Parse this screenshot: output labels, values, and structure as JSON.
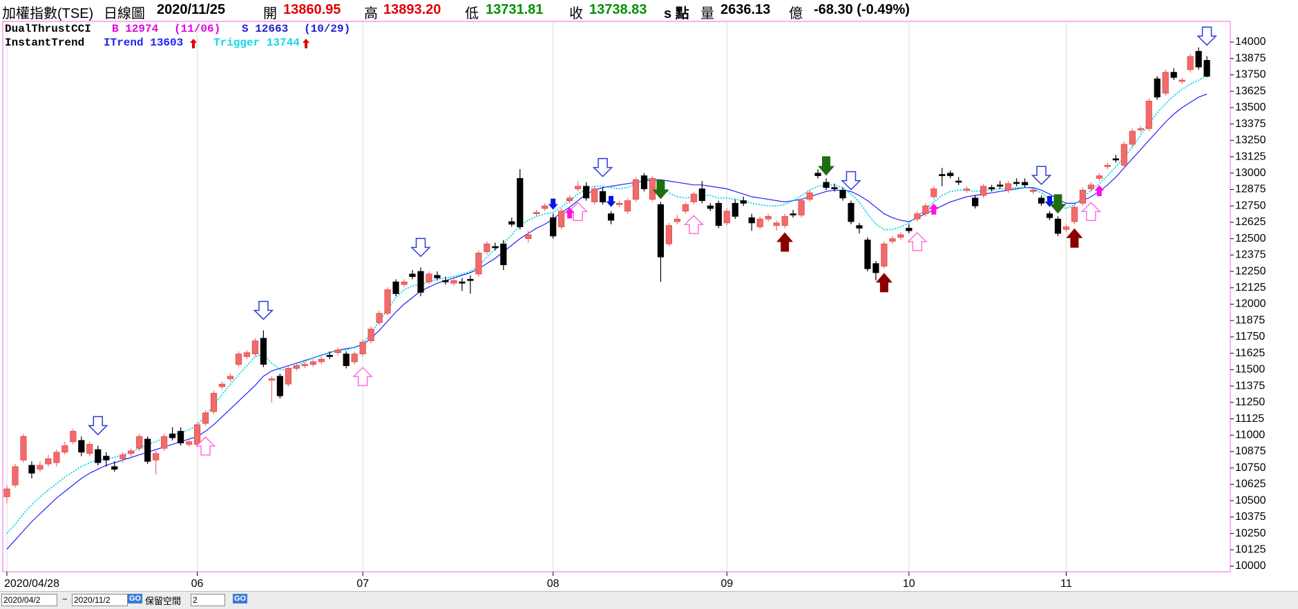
{
  "header": {
    "name": "加權指數(TSE)",
    "period": "日線圖",
    "date": "2020/11/25",
    "open_label": "開",
    "open": "13860.95",
    "high_label": "高",
    "high": "13893.20",
    "low_label": "低",
    "low": "13731.81",
    "close_label": "收",
    "close": "13738.83",
    "unit": "s 點",
    "volume_label": "量",
    "volume": "2636.13",
    "volume_unit": "億",
    "change": "-68.30 (-0.49%)"
  },
  "legend": {
    "dual_name": "DualThrustCCI",
    "buy": "B 12974",
    "buy_date": "(11/06)",
    "sell": "S 12663",
    "sell_date": "(10/29)",
    "trend_name": "InstantTrend"
  },
  "toolbar": {
    "start": "2020/04/2",
    "tilde": "~",
    "end": "2020/11/2",
    "go": "GO",
    "reserve_label": "保留空間",
    "reserve_value": "2",
    "go2": "GO"
  },
  "chart_data": {
    "type": "candlestick",
    "up_color": "#f26b6b",
    "down_color": "#000000",
    "frame_color": "#f060f0",
    "grid": true,
    "ylim": [
      10000,
      14000
    ],
    "yticks": [
      10000,
      10125,
      10250,
      10375,
      10500,
      10625,
      10750,
      10875,
      11000,
      11125,
      11250,
      11375,
      11500,
      11625,
      11750,
      11875,
      12000,
      12125,
      12250,
      12375,
      12500,
      12625,
      12750,
      12875,
      13000,
      13125,
      13250,
      13375,
      13500,
      13625,
      13750,
      13875,
      14000
    ],
    "categories": [
      "2020/04/28",
      null,
      null,
      null,
      null,
      null,
      null,
      null,
      null,
      null,
      null,
      null,
      null,
      null,
      null,
      null,
      null,
      null,
      null,
      null,
      null,
      null,
      null,
      "06",
      null,
      null,
      null,
      null,
      null,
      null,
      null,
      null,
      null,
      null,
      null,
      null,
      null,
      null,
      null,
      null,
      null,
      null,
      null,
      "07",
      null,
      null,
      null,
      null,
      null,
      null,
      null,
      null,
      null,
      null,
      null,
      null,
      null,
      null,
      null,
      null,
      null,
      null,
      null,
      null,
      null,
      null,
      "08",
      null,
      null,
      null,
      null,
      null,
      null,
      null,
      null,
      null,
      null,
      null,
      null,
      null,
      null,
      null,
      null,
      null,
      null,
      null,
      null,
      "09",
      null,
      null,
      null,
      null,
      null,
      null,
      null,
      null,
      null,
      null,
      null,
      null,
      null,
      null,
      null,
      null,
      null,
      null,
      null,
      null,
      null,
      "10",
      null,
      null,
      null,
      null,
      null,
      null,
      null,
      null,
      null,
      null,
      null,
      null,
      null,
      null,
      null,
      null,
      null,
      null,
      "11",
      null,
      null,
      null,
      null,
      null,
      null,
      null,
      null,
      null,
      null,
      null,
      null,
      null,
      null,
      null,
      null,
      null
    ],
    "ohlc": [
      [
        10530,
        10620,
        10480,
        10590
      ],
      [
        10620,
        10780,
        10600,
        10760
      ],
      [
        10810,
        11010,
        10790,
        10990
      ],
      [
        10770,
        10800,
        10670,
        10710
      ],
      [
        10740,
        10800,
        10720,
        10770
      ],
      [
        10780,
        10850,
        10760,
        10820
      ],
      [
        10790,
        10890,
        10760,
        10870
      ],
      [
        10870,
        10950,
        10850,
        10920
      ],
      [
        10950,
        11050,
        10930,
        11030
      ],
      [
        10960,
        10990,
        10840,
        10870
      ],
      [
        10860,
        10950,
        10840,
        10930
      ],
      [
        10890,
        10920,
        10770,
        10790
      ],
      [
        10840,
        10870,
        10760,
        10810
      ],
      [
        10760,
        10800,
        10720,
        10740
      ],
      [
        10820,
        10870,
        10790,
        10850
      ],
      [
        10860,
        10900,
        10840,
        10880
      ],
      [
        10900,
        11010,
        10880,
        10990
      ],
      [
        10970,
        10990,
        10780,
        10800
      ],
      [
        10810,
        10880,
        10700,
        10860
      ],
      [
        10900,
        11010,
        10880,
        10990
      ],
      [
        11010,
        11060,
        10960,
        10980
      ],
      [
        11030,
        11060,
        10920,
        10940
      ],
      [
        10930,
        10970,
        10910,
        10950
      ],
      [
        10930,
        11100,
        10910,
        11080
      ],
      [
        11090,
        11190,
        11070,
        11170
      ],
      [
        11180,
        11340,
        11160,
        11320
      ],
      [
        11370,
        11410,
        11350,
        11390
      ],
      [
        11430,
        11470,
        11410,
        11450
      ],
      [
        11540,
        11640,
        11520,
        11620
      ],
      [
        11600,
        11650,
        11580,
        11630
      ],
      [
        11620,
        11740,
        11600,
        11720
      ],
      [
        11740,
        11800,
        11520,
        11540
      ],
      [
        11420,
        11450,
        11250,
        11430
      ],
      [
        11450,
        11470,
        11280,
        11300
      ],
      [
        11390,
        11530,
        11370,
        11510
      ],
      [
        11510,
        11550,
        11490,
        11530
      ],
      [
        11530,
        11560,
        11510,
        11540
      ],
      [
        11540,
        11580,
        11520,
        11560
      ],
      [
        11560,
        11600,
        11540,
        11580
      ],
      [
        11610,
        11640,
        11580,
        11600
      ],
      [
        11630,
        11670,
        11610,
        11650
      ],
      [
        11620,
        11640,
        11510,
        11530
      ],
      [
        11560,
        11640,
        11540,
        11620
      ],
      [
        11620,
        11730,
        11600,
        11710
      ],
      [
        11720,
        11830,
        11700,
        11810
      ],
      [
        11860,
        11950,
        11840,
        11930
      ],
      [
        11930,
        12130,
        11910,
        12110
      ],
      [
        12170,
        12190,
        12060,
        12080
      ],
      [
        12150,
        12190,
        12130,
        12170
      ],
      [
        12230,
        12260,
        12190,
        12210
      ],
      [
        12250,
        12280,
        12060,
        12090
      ],
      [
        12170,
        12250,
        12150,
        12230
      ],
      [
        12220,
        12250,
        12180,
        12200
      ],
      [
        12180,
        12210,
        12150,
        12170
      ],
      [
        12160,
        12200,
        12140,
        12180
      ],
      [
        12170,
        12200,
        12100,
        12160
      ],
      [
        12190,
        12220,
        12080,
        12180
      ],
      [
        12230,
        12410,
        12210,
        12390
      ],
      [
        12400,
        12480,
        12380,
        12460
      ],
      [
        12440,
        12470,
        12410,
        12430
      ],
      [
        12460,
        12490,
        12260,
        12300
      ],
      [
        12630,
        12660,
        12590,
        12610
      ],
      [
        12960,
        13030,
        12570,
        12590
      ],
      [
        12500,
        12560,
        12470,
        12530
      ],
      [
        12690,
        12720,
        12670,
        12700
      ],
      [
        12730,
        12770,
        12710,
        12750
      ],
      [
        12660,
        12690,
        12500,
        12520
      ],
      [
        12590,
        12730,
        12570,
        12710
      ],
      [
        12790,
        12830,
        12770,
        12810
      ],
      [
        12880,
        12940,
        12860,
        12900
      ],
      [
        12900,
        12930,
        12790,
        12810
      ],
      [
        12780,
        12900,
        12760,
        12880
      ],
      [
        12860,
        12890,
        12760,
        12780
      ],
      [
        12690,
        12710,
        12610,
        12640
      ],
      [
        12760,
        12790,
        12740,
        12770
      ],
      [
        12710,
        12810,
        12690,
        12790
      ],
      [
        12800,
        12970,
        12780,
        12950
      ],
      [
        12980,
        13000,
        12860,
        12880
      ],
      [
        12800,
        12980,
        12780,
        12960
      ],
      [
        12760,
        12780,
        12170,
        12360
      ],
      [
        12460,
        12620,
        12440,
        12600
      ],
      [
        12630,
        12680,
        12610,
        12650
      ],
      [
        12710,
        12780,
        12690,
        12760
      ],
      [
        12780,
        12860,
        12760,
        12840
      ],
      [
        12880,
        12940,
        12770,
        12790
      ],
      [
        12750,
        12770,
        12710,
        12730
      ],
      [
        12770,
        12790,
        12580,
        12600
      ],
      [
        12620,
        12730,
        12600,
        12710
      ],
      [
        12770,
        12800,
        12650,
        12670
      ],
      [
        12790,
        12820,
        12750,
        12770
      ],
      [
        12660,
        12690,
        12560,
        12620
      ],
      [
        12590,
        12670,
        12570,
        12650
      ],
      [
        12650,
        12690,
        12630,
        12670
      ],
      [
        12600,
        12640,
        12560,
        12620
      ],
      [
        12600,
        12690,
        12580,
        12670
      ],
      [
        12690,
        12720,
        12660,
        12680
      ],
      [
        12680,
        12810,
        12660,
        12790
      ],
      [
        12800,
        12870,
        12780,
        12850
      ],
      [
        13000,
        13030,
        12960,
        12980
      ],
      [
        12930,
        12960,
        12870,
        12890
      ],
      [
        12890,
        12920,
        12860,
        12880
      ],
      [
        12870,
        12890,
        12790,
        12810
      ],
      [
        12770,
        12790,
        12610,
        12630
      ],
      [
        12600,
        12620,
        12540,
        12580
      ],
      [
        12490,
        12510,
        12250,
        12270
      ],
      [
        12310,
        12330,
        12180,
        12240
      ],
      [
        12290,
        12480,
        12270,
        12460
      ],
      [
        12480,
        12520,
        12460,
        12500
      ],
      [
        12510,
        12550,
        12490,
        12530
      ],
      [
        12580,
        12610,
        12540,
        12560
      ],
      [
        12650,
        12710,
        12630,
        12690
      ],
      [
        12690,
        12770,
        12670,
        12750
      ],
      [
        12820,
        12900,
        12800,
        12880
      ],
      [
        12990,
        13040,
        12900,
        12980
      ],
      [
        13000,
        13020,
        12960,
        12980
      ],
      [
        12940,
        12970,
        12910,
        12930
      ],
      [
        12870,
        12900,
        12850,
        12880
      ],
      [
        12810,
        12830,
        12730,
        12750
      ],
      [
        12830,
        12920,
        12810,
        12900
      ],
      [
        12890,
        12910,
        12860,
        12880
      ],
      [
        12910,
        12940,
        12880,
        12900
      ],
      [
        12870,
        12940,
        12850,
        12920
      ],
      [
        12930,
        12960,
        12900,
        12920
      ],
      [
        12930,
        12960,
        12890,
        12910
      ],
      [
        12860,
        12890,
        12840,
        12870
      ],
      [
        12810,
        12830,
        12750,
        12770
      ],
      [
        12690,
        12710,
        12640,
        12660
      ],
      [
        12650,
        12670,
        12520,
        12540
      ],
      [
        12570,
        12610,
        12550,
        12590
      ],
      [
        12630,
        12760,
        12610,
        12740
      ],
      [
        12770,
        12890,
        12750,
        12870
      ],
      [
        12880,
        12930,
        12860,
        12910
      ],
      [
        12960,
        13000,
        12940,
        12980
      ],
      [
        13050,
        13080,
        13030,
        13060
      ],
      [
        13110,
        13140,
        13080,
        13100
      ],
      [
        13060,
        13240,
        13040,
        13220
      ],
      [
        13220,
        13340,
        13200,
        13320
      ],
      [
        13330,
        13360,
        13310,
        13340
      ],
      [
        13340,
        13570,
        13320,
        13550
      ],
      [
        13720,
        13740,
        13560,
        13580
      ],
      [
        13610,
        13790,
        13590,
        13770
      ],
      [
        13770,
        13800,
        13710,
        13730
      ],
      [
        13700,
        13730,
        13680,
        13710
      ],
      [
        13790,
        13910,
        13770,
        13890
      ],
      [
        13930,
        13960,
        13790,
        13810
      ],
      [
        13860.95,
        13893.2,
        13731.81,
        13738.83
      ]
    ],
    "series": [
      {
        "name": "ITrend 13603",
        "color": "#2020ff",
        "style": "solid",
        "values": [
          10130,
          10200,
          10270,
          10340,
          10400,
          10460,
          10520,
          10570,
          10620,
          10670,
          10710,
          10740,
          10770,
          10790,
          10810,
          10830,
          10850,
          10870,
          10890,
          10910,
          10930,
          10950,
          10970,
          10990,
          11030,
          11080,
          11140,
          11200,
          11260,
          11320,
          11380,
          11450,
          11490,
          11510,
          11530,
          11550,
          11570,
          11590,
          11610,
          11630,
          11650,
          11660,
          11670,
          11690,
          11740,
          11800,
          11870,
          11940,
          12000,
          12050,
          12100,
          12130,
          12160,
          12180,
          12200,
          12220,
          12240,
          12270,
          12310,
          12350,
          12400,
          12450,
          12500,
          12540,
          12580,
          12610,
          12650,
          12700,
          12740,
          12790,
          12840,
          12870,
          12890,
          12900,
          12910,
          12920,
          12930,
          12940,
          12950,
          12950,
          12940,
          12930,
          12920,
          12910,
          12910,
          12900,
          12890,
          12880,
          12860,
          12840,
          12820,
          12810,
          12800,
          12790,
          12780,
          12790,
          12800,
          12820,
          12840,
          12860,
          12870,
          12870,
          12860,
          12830,
          12790,
          12740,
          12690,
          12660,
          12640,
          12630,
          12660,
          12690,
          12720,
          12750,
          12780,
          12800,
          12820,
          12830,
          12840,
          12850,
          12860,
          12870,
          12880,
          12890,
          12890,
          12870,
          12840,
          12800,
          12770,
          12770,
          12790,
          12820,
          12860,
          12910,
          12970,
          13040,
          13110,
          13180,
          13250,
          13320,
          13390,
          13450,
          13500,
          13540,
          13580,
          13603
        ]
      },
      {
        "name": "Trigger 13744",
        "color": "#10d8e8",
        "style": "dotted",
        "values": [
          10250,
          10320,
          10400,
          10470,
          10530,
          10580,
          10630,
          10680,
          10720,
          10760,
          10790,
          10810,
          10820,
          10830,
          10850,
          10870,
          10900,
          10930,
          10950,
          10980,
          11000,
          11020,
          11040,
          11080,
          11150,
          11230,
          11310,
          11390,
          11460,
          11530,
          11600,
          11620,
          11550,
          11500,
          11500,
          11530,
          11560,
          11590,
          11610,
          11630,
          11650,
          11650,
          11670,
          11700,
          11780,
          11870,
          11960,
          12050,
          12110,
          12140,
          12150,
          12170,
          12190,
          12200,
          12210,
          12230,
          12250,
          12290,
          12360,
          12420,
          12460,
          12530,
          12600,
          12640,
          12670,
          12690,
          12700,
          12740,
          12790,
          12840,
          12880,
          12900,
          12900,
          12890,
          12880,
          12890,
          12920,
          12950,
          12960,
          12910,
          12850,
          12820,
          12810,
          12820,
          12830,
          12830,
          12810,
          12810,
          12800,
          12790,
          12770,
          12760,
          12750,
          12750,
          12760,
          12790,
          12830,
          12870,
          12900,
          12910,
          12910,
          12890,
          12840,
          12780,
          12690,
          12610,
          12570,
          12570,
          12590,
          12620,
          12670,
          12720,
          12780,
          12830,
          12860,
          12870,
          12870,
          12860,
          12870,
          12870,
          12880,
          12880,
          12890,
          12890,
          12880,
          12850,
          12800,
          12750,
          12730,
          12760,
          12810,
          12870,
          12920,
          12980,
          13050,
          13120,
          13200,
          13290,
          13380,
          13460,
          13530,
          13590,
          13640,
          13680,
          13710,
          13744
        ]
      }
    ]
  }
}
